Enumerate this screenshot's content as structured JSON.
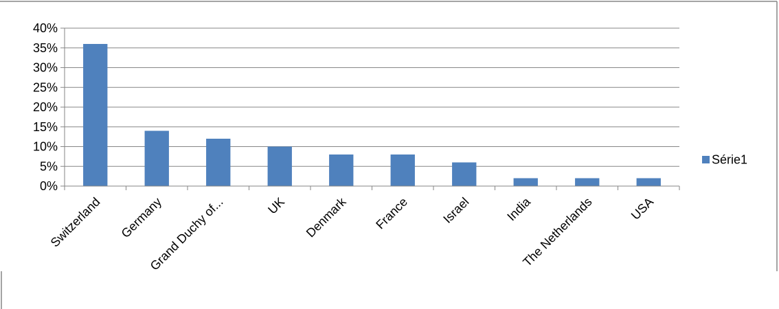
{
  "chart_data": {
    "type": "bar",
    "title": "",
    "xlabel": "",
    "ylabel": "",
    "categories": [
      "Switzerland",
      "Germany",
      "Grand Duchy of...",
      "UK",
      "Denmark",
      "France",
      "Israel",
      "India",
      "The Netherlands",
      "USA"
    ],
    "series": [
      {
        "name": "Série1",
        "values": [
          0.36,
          0.14,
          0.12,
          0.1,
          0.08,
          0.08,
          0.06,
          0.02,
          0.02,
          0.02
        ],
        "color": "#4F81BD"
      }
    ],
    "ylim": [
      0,
      0.4
    ],
    "yticks": [
      0,
      0.05,
      0.1,
      0.15,
      0.2,
      0.25,
      0.3,
      0.35,
      0.4
    ],
    "ytick_labels": [
      "0%",
      "5%",
      "10%",
      "15%",
      "20%",
      "25%",
      "30%",
      "35%",
      "40%"
    ],
    "grid": true,
    "legend": "right",
    "x_tick_rotation_deg": -45
  },
  "colors": {
    "bar": "#4F81BD",
    "grid": "#868686",
    "axis": "#868686",
    "frame": "#868686",
    "text": "#000000"
  }
}
